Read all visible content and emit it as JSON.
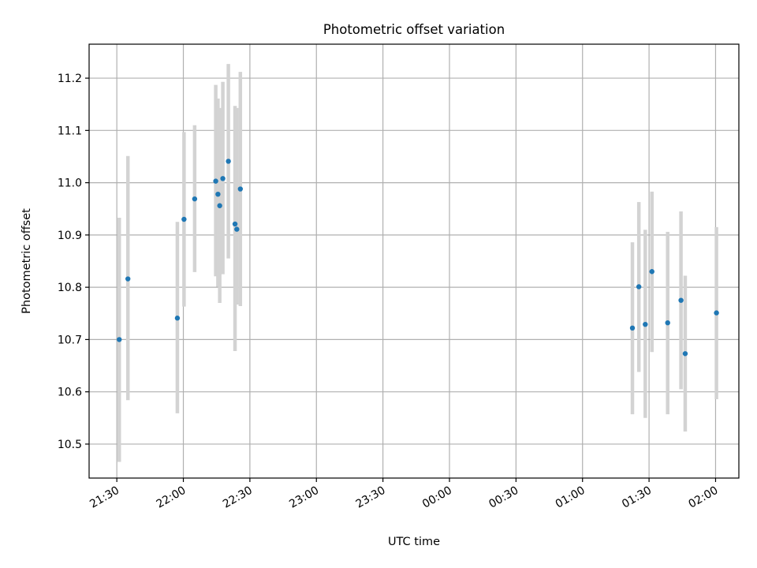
{
  "chart_data": {
    "type": "scatter",
    "title": "Photometric offset variation",
    "xlabel": "UTC time",
    "ylabel": "Photometric offset",
    "x_axis": "time",
    "x_ticks": [
      "21:30",
      "22:00",
      "22:30",
      "23:00",
      "23:30",
      "00:00",
      "00:30",
      "01:00",
      "01:30",
      "02:00"
    ],
    "x_tick_minutes": [
      0,
      30,
      60,
      90,
      120,
      150,
      180,
      210,
      240,
      270
    ],
    "xlim_minutes": [
      -12.5,
      280.5
    ],
    "ylim": [
      10.435,
      11.265
    ],
    "y_ticks": [
      10.5,
      10.6,
      10.7,
      10.8,
      10.9,
      11.0,
      11.1,
      11.2
    ],
    "grid": true,
    "colors": {
      "point": "#1f77b4",
      "errorbar": "#d3d3d3",
      "grid": "#b0b0b0"
    },
    "points": [
      {
        "x": 1.1,
        "y": 10.7,
        "ylow": 10.466,
        "yhigh": 10.933
      },
      {
        "x": 5.0,
        "y": 10.816,
        "ylow": 10.584,
        "yhigh": 11.051
      },
      {
        "x": 27.3,
        "y": 10.741,
        "ylow": 10.559,
        "yhigh": 10.925
      },
      {
        "x": 30.3,
        "y": 10.93,
        "ylow": 10.763,
        "yhigh": 11.097
      },
      {
        "x": 35.1,
        "y": 10.969,
        "ylow": 10.829,
        "yhigh": 11.11
      },
      {
        "x": 44.6,
        "y": 11.003,
        "ylow": 10.821,
        "yhigh": 11.187
      },
      {
        "x": 45.6,
        "y": 10.978,
        "ylow": 10.801,
        "yhigh": 11.161
      },
      {
        "x": 46.4,
        "y": 10.956,
        "ylow": 10.77,
        "yhigh": 11.143
      },
      {
        "x": 47.8,
        "y": 11.008,
        "ylow": 10.825,
        "yhigh": 11.193
      },
      {
        "x": 50.3,
        "y": 11.041,
        "ylow": 10.855,
        "yhigh": 11.227
      },
      {
        "x": 53.3,
        "y": 10.921,
        "ylow": 10.678,
        "yhigh": 11.147
      },
      {
        "x": 54.1,
        "y": 10.911,
        "ylow": 10.767,
        "yhigh": 11.143
      },
      {
        "x": 55.7,
        "y": 10.988,
        "ylow": 10.764,
        "yhigh": 11.212
      },
      {
        "x": 232.5,
        "y": 10.722,
        "ylow": 10.557,
        "yhigh": 10.886
      },
      {
        "x": 235.4,
        "y": 10.801,
        "ylow": 10.638,
        "yhigh": 10.963
      },
      {
        "x": 238.3,
        "y": 10.729,
        "ylow": 10.55,
        "yhigh": 10.91
      },
      {
        "x": 241.3,
        "y": 10.83,
        "ylow": 10.676,
        "yhigh": 10.983
      },
      {
        "x": 248.4,
        "y": 10.732,
        "ylow": 10.557,
        "yhigh": 10.906
      },
      {
        "x": 254.4,
        "y": 10.775,
        "ylow": 10.605,
        "yhigh": 10.945
      },
      {
        "x": 256.3,
        "y": 10.673,
        "ylow": 10.524,
        "yhigh": 10.822
      },
      {
        "x": 270.4,
        "y": 10.751,
        "ylow": 10.586,
        "yhigh": 10.915
      }
    ]
  }
}
